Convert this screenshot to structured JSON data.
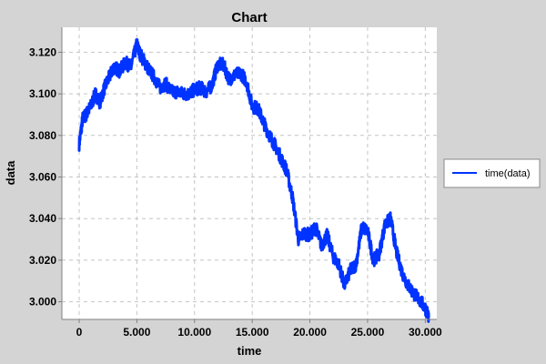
{
  "chart_data": {
    "type": "line",
    "title": "Chart",
    "xlabel": "time",
    "ylabel": "data",
    "xlim": [
      -1500,
      31000
    ],
    "ylim": [
      2.9915,
      3.132
    ],
    "x_ticks": [
      0,
      5000,
      10000,
      15000,
      20000,
      25000,
      30000
    ],
    "x_tick_labels": [
      "0",
      "5.000",
      "10.000",
      "15.000",
      "20.000",
      "25.000",
      "30.000"
    ],
    "y_ticks": [
      3.0,
      3.02,
      3.04,
      3.06,
      3.08,
      3.1,
      3.12
    ],
    "y_tick_labels": [
      "3.000",
      "3.020",
      "3.040",
      "3.060",
      "3.080",
      "3.100",
      "3.120"
    ],
    "grid": true,
    "legend_position": "right",
    "series": [
      {
        "name": "time(data)",
        "color": "#0033ff",
        "x": [
          0,
          300,
          600,
          1000,
          1400,
          1800,
          2200,
          2600,
          3000,
          3500,
          4000,
          4500,
          5000,
          5200,
          5600,
          6000,
          6500,
          7000,
          7500,
          8000,
          8500,
          9000,
          9500,
          10000,
          10500,
          11000,
          11500,
          12000,
          12500,
          13000,
          13500,
          14000,
          14500,
          15000,
          15500,
          16000,
          16500,
          17000,
          17500,
          18000,
          18500,
          19000,
          19500,
          20000,
          20500,
          21000,
          21500,
          22000,
          22500,
          23000,
          23500,
          24000,
          24500,
          25000,
          25500,
          26000,
          26500,
          27000,
          27500,
          28000,
          28500,
          29000,
          29500,
          30000,
          30300
        ],
        "values": [
          3.076,
          3.088,
          3.09,
          3.094,
          3.1,
          3.096,
          3.103,
          3.108,
          3.113,
          3.111,
          3.115,
          3.113,
          3.124,
          3.12,
          3.116,
          3.112,
          3.108,
          3.103,
          3.105,
          3.101,
          3.101,
          3.1,
          3.1,
          3.102,
          3.103,
          3.101,
          3.104,
          3.114,
          3.114,
          3.107,
          3.109,
          3.11,
          3.106,
          3.094,
          3.093,
          3.086,
          3.08,
          3.075,
          3.069,
          3.063,
          3.05,
          3.03,
          3.033,
          3.032,
          3.036,
          3.027,
          3.032,
          3.022,
          3.018,
          3.008,
          3.015,
          3.018,
          3.036,
          3.034,
          3.02,
          3.023,
          3.037,
          3.04,
          3.024,
          3.014,
          3.008,
          3.004,
          3.001,
          2.997,
          2.993
        ]
      }
    ]
  }
}
